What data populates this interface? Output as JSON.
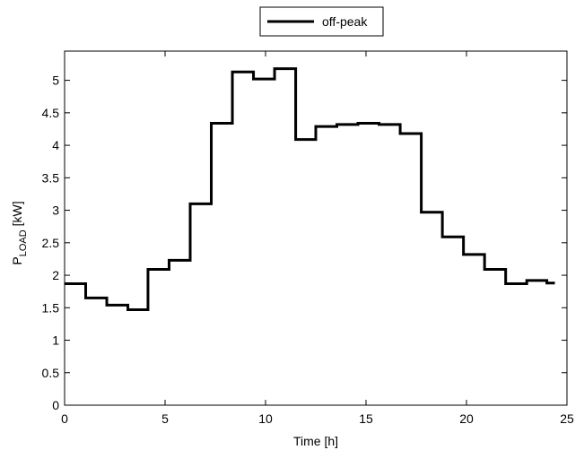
{
  "chart_data": {
    "type": "stairs",
    "xlabel": "Time [h]",
    "ylabel": "P",
    "ylabel_sub": "LOAD",
    "ylabel_unit": "[kW]",
    "x": [
      0,
      1.05,
      2.1,
      3.15,
      4.15,
      5.2,
      6.25,
      7.3,
      8.35,
      9.4,
      10.45,
      11.5,
      12.5,
      13.55,
      14.6,
      15.65,
      16.7,
      17.75,
      18.8,
      19.85,
      20.9,
      21.95,
      23,
      24,
      24.4
    ],
    "series": [
      {
        "name": "off-peak",
        "color": "#000000",
        "values": [
          1.87,
          1.65,
          1.54,
          1.47,
          2.09,
          2.23,
          3.1,
          4.34,
          5.13,
          5.02,
          5.18,
          4.09,
          4.29,
          4.32,
          4.34,
          4.32,
          4.18,
          2.97,
          2.59,
          2.32,
          2.09,
          1.87,
          1.92,
          1.88,
          1.88
        ]
      }
    ],
    "xlim": [
      0,
      25
    ],
    "xticks": [
      0,
      5,
      10,
      15,
      20,
      25
    ],
    "ylim": [
      0,
      5.45
    ],
    "yticks": [
      0,
      0.5,
      1,
      1.5,
      2,
      2.5,
      3,
      3.5,
      4,
      4.5,
      5
    ],
    "grid": false,
    "legend": "top"
  }
}
